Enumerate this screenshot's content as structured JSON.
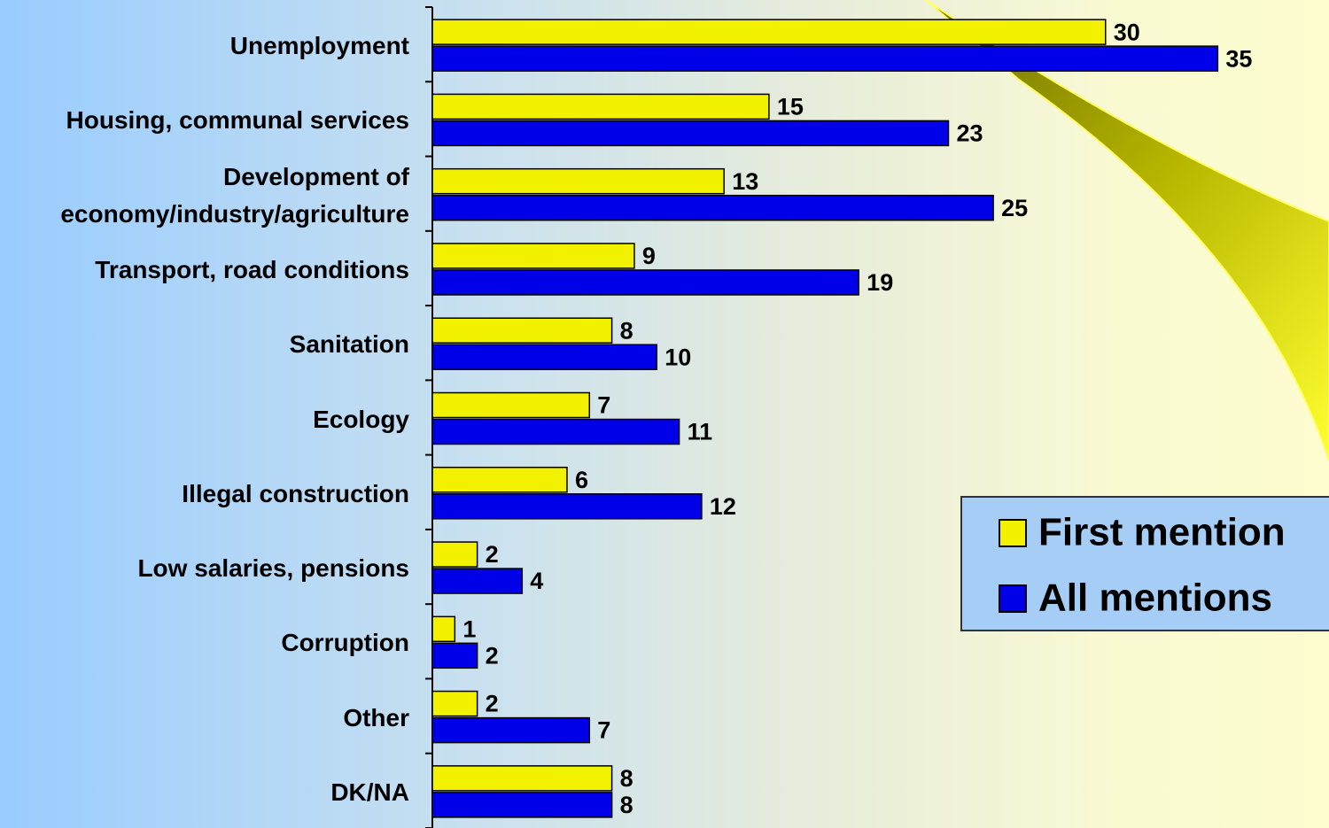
{
  "chart_data": {
    "type": "bar",
    "orientation": "horizontal",
    "categories": [
      "Unemployment",
      "Housing, communal services",
      "Development of economy/industry/agriculture",
      "Transport, road conditions",
      "Sanitation",
      "Ecology",
      "Illegal construction",
      "Low salaries, pensions",
      "Corruption",
      "Other",
      "DK/NA"
    ],
    "series": [
      {
        "name": "First mention",
        "color": "#f2f200",
        "values": [
          30,
          15,
          13,
          9,
          8,
          7,
          6,
          2,
          1,
          2,
          8
        ]
      },
      {
        "name": "All mentions",
        "color": "#0000e8",
        "values": [
          35,
          23,
          25,
          19,
          10,
          11,
          12,
          4,
          2,
          7,
          8
        ]
      }
    ],
    "xlim": [
      0,
      40
    ],
    "legend": "right"
  }
}
